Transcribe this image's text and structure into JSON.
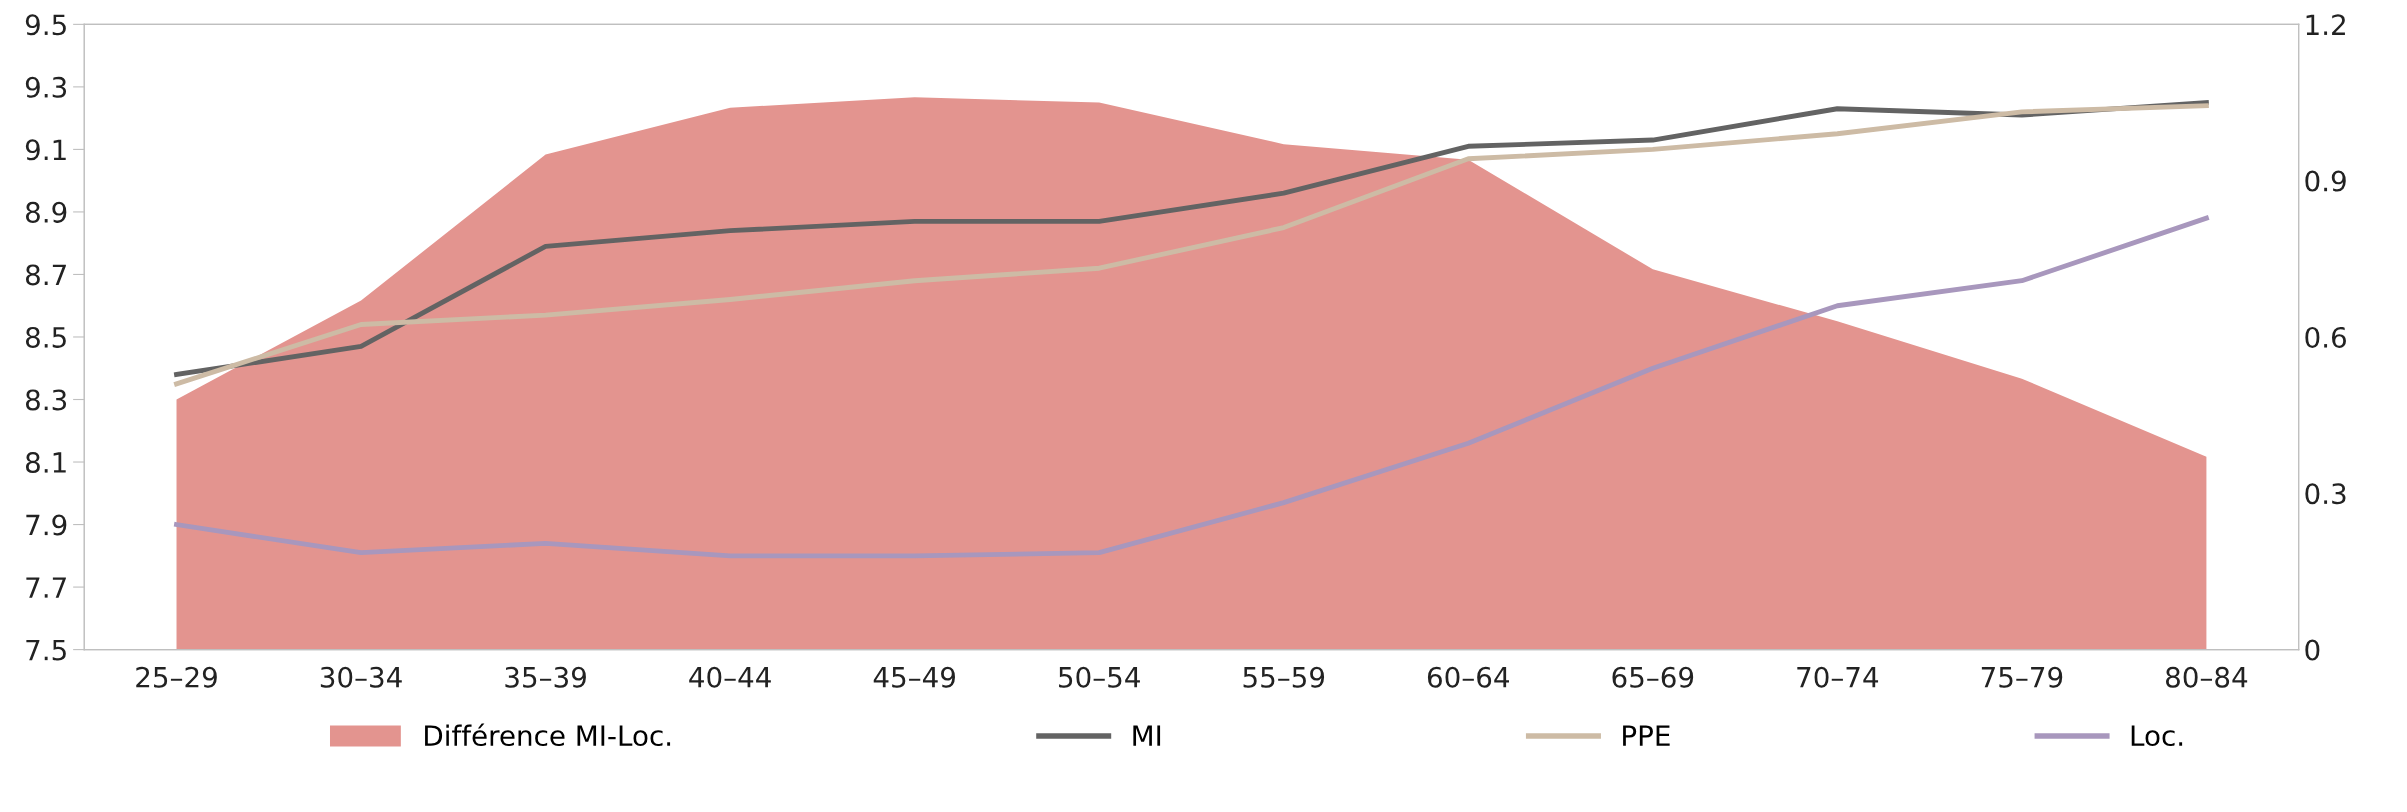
{
  "chart_data": {
    "type": "line",
    "categories": [
      "25–29",
      "30–34",
      "35–39",
      "40–44",
      "45–49",
      "50–54",
      "55–59",
      "60–64",
      "65–69",
      "70–74",
      "75–79",
      "80–84"
    ],
    "series": [
      {
        "name": "Différence MI-Loc.",
        "type": "area",
        "axis": "y2",
        "color": "#e3948f",
        "values": [
          0.48,
          0.67,
          0.95,
          1.04,
          1.06,
          1.05,
          0.97,
          0.94,
          0.73,
          0.63,
          0.52,
          0.37
        ]
      },
      {
        "name": "MI",
        "color": "#636363",
        "values": [
          8.38,
          8.47,
          8.79,
          8.84,
          8.87,
          8.87,
          8.96,
          9.11,
          9.13,
          9.23,
          9.21,
          9.25
        ]
      },
      {
        "name": "PPE",
        "color": "#cdbba5",
        "values": [
          8.35,
          8.54,
          8.57,
          8.62,
          8.68,
          8.72,
          8.85,
          9.07,
          9.1,
          9.15,
          9.22,
          9.24
        ]
      },
      {
        "name": "Loc.",
        "color": "#a897bd",
        "values": [
          7.9,
          7.81,
          7.84,
          7.8,
          7.8,
          7.81,
          7.97,
          8.16,
          8.4,
          8.6,
          8.68,
          8.88
        ]
      }
    ],
    "ylim": [
      7.5,
      9.5
    ],
    "yticks": [
      7.5,
      7.7,
      7.9,
      8.1,
      8.3,
      8.5,
      8.7,
      8.9,
      9.1,
      9.3,
      9.5
    ],
    "y2lim": [
      0,
      1.2
    ],
    "y2ticks": [
      0,
      0.3,
      0.6,
      0.9,
      1.2
    ],
    "grid": false,
    "legend": "bottom",
    "marker": "none",
    "line_style": "solid"
  }
}
